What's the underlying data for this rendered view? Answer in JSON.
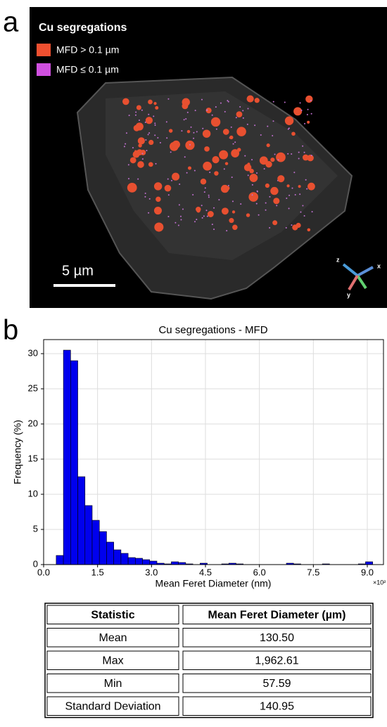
{
  "panel_a": {
    "panel_label": "a",
    "title": "Cu segregations",
    "legend": [
      "MFD > 0.1 µm",
      "MFD ≤ 0.1 µm"
    ],
    "scale_bar": "5 µm",
    "axes": [
      "z",
      "x",
      "y"
    ]
  },
  "panel_b": {
    "panel_label": "b"
  },
  "chart_data": {
    "type": "histogram",
    "title": "Cu segregations - MFD",
    "x_label": "Mean Feret Diameter (nm)",
    "y_label": "Frequency (%)",
    "x_multiplier": "×10²",
    "bins": [
      0.35,
      0.55,
      0.75,
      0.95,
      1.15,
      1.35,
      1.55,
      1.75,
      1.95,
      2.15,
      2.35,
      2.55,
      2.75,
      2.95,
      3.15,
      3.35,
      3.55,
      3.75,
      3.95,
      4.15,
      4.35,
      4.55,
      4.75,
      4.95,
      5.15,
      5.35,
      5.55,
      5.75,
      5.95,
      6.15,
      6.35,
      6.55,
      6.75,
      6.95,
      7.15,
      7.35,
      7.55,
      7.75,
      7.95,
      8.15,
      8.35,
      8.55,
      8.75,
      8.95,
      9.15,
      9.35
    ],
    "values": [
      1.3,
      30.5,
      29,
      12.5,
      8.4,
      6.3,
      4.7,
      3.2,
      2.1,
      1.6,
      1.0,
      0.9,
      0.7,
      0.5,
      0.2,
      0.1,
      0.4,
      0.3,
      0.1,
      0,
      0.2,
      0,
      0,
      0.1,
      0.2,
      0.1,
      0,
      0,
      0,
      0,
      0,
      0,
      0.2,
      0.1,
      0,
      0,
      0,
      0.1,
      0,
      0,
      0,
      0,
      0.1,
      0.4,
      0
    ],
    "color": "#0000ee",
    "xlim": [
      0,
      9.45
    ],
    "ylim": [
      0,
      32
    ],
    "xticks": [
      {
        "value": 0,
        "label": "0.0"
      },
      1.5,
      {
        "value": 3,
        "label": "3.0"
      },
      4.5,
      {
        "value": 6,
        "label": "6.0"
      },
      7.5,
      {
        "value": 9,
        "label": "9.0"
      }
    ],
    "yticks": [
      0,
      5,
      10,
      15,
      20,
      25,
      30
    ],
    "grid": true
  },
  "table": {
    "header": [
      "Statistic",
      "Mean Feret Diameter (µm)"
    ],
    "rows": [
      [
        "Mean",
        "130.50"
      ],
      [
        "Max",
        "1,962.61"
      ],
      [
        "Min",
        "57.59"
      ],
      [
        "Standard Deviation",
        "140.95"
      ]
    ]
  }
}
